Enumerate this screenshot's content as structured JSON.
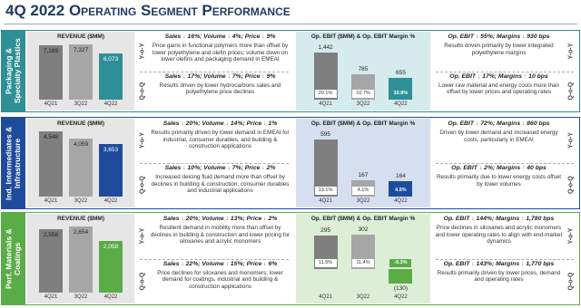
{
  "title": "4Q 2022 Operating Segment Performance",
  "labels": {
    "yoy": "Y-o-Y",
    "qoq": "Q-o-Q"
  },
  "segments": [
    {
      "name": "Packaging & Specialty Plastics",
      "color": "#2e8f96",
      "light": "#d5ebec",
      "chart_data": [
        {
          "type": "bar",
          "title": "REVENUE ($MM)",
          "categories": [
            "4Q21",
            "3Q22",
            "4Q22"
          ],
          "values": [
            7189,
            7327,
            6073
          ],
          "value_labels": [
            "7,189",
            "7,327",
            "6,073"
          ],
          "colors": [
            "#7f7f7f",
            "#a6a6a6",
            "#2e8f96"
          ]
        },
        {
          "type": "bar",
          "title": "Op. EBIT ($MM) & Op. EBIT Margin %",
          "categories": [
            "4Q21",
            "3Q22",
            "4Q22"
          ],
          "values": [
            1442,
            785,
            655
          ],
          "value_labels": [
            "1,442",
            "785",
            "655"
          ],
          "margins": [
            20.1,
            10.7,
            10.8
          ],
          "margin_labels": [
            "20.1%",
            "10.7%",
            "10.8%"
          ],
          "colors": [
            "#7f7f7f",
            "#a6a6a6",
            "#2e8f96"
          ]
        }
      ],
      "revenue_comments": {
        "yoy": {
          "headline": "Sales ↓ 16%; Volume ↓ 4%; Price ↓ 9%",
          "text": "Price gains in functional polymers more than offset by lower polyethylene and olefin prices; volume down on lower olefins and packaging demand in EMEAI"
        },
        "qoq": {
          "headline": "Sales ↓ 17%; Volume ↓ 7%; Price ↓ 9%",
          "text": "Results driven by lower hydrocarbons sales and polyethylene price declines"
        }
      },
      "ebit_comments": {
        "yoy": {
          "headline": "Op. EBIT ↓ 55%; Margins ↓ 930 bps",
          "text": "Results driven primarily by lower integrated polyethylene margins"
        },
        "qoq": {
          "headline": "Op. EBIT ↓ 17%; Margins ↑ 10 bps",
          "text": "Lower raw material and energy costs more than offset by lower prices and operating rates"
        }
      }
    },
    {
      "name": "Ind. Intermediates & Infrastructure",
      "color": "#1f4b9c",
      "light": "#d6dff0",
      "chart_data": [
        {
          "type": "bar",
          "title": "REVENUE ($MM)",
          "categories": [
            "4Q21",
            "3Q22",
            "4Q22"
          ],
          "values": [
            4548,
            4059,
            3653
          ],
          "value_labels": [
            "4,548",
            "4,059",
            "3,653"
          ],
          "colors": [
            "#7f7f7f",
            "#a6a6a6",
            "#1f4b9c"
          ]
        },
        {
          "type": "bar",
          "title": "Op. EBIT ($MM) & Op. EBIT Margin %",
          "categories": [
            "4Q21",
            "3Q22",
            "4Q22"
          ],
          "values": [
            595,
            167,
            164
          ],
          "value_labels": [
            "595",
            "167",
            "164"
          ],
          "margins": [
            13.1,
            4.1,
            4.5
          ],
          "margin_labels": [
            "13.1%",
            "4.1%",
            "4.5%"
          ],
          "colors": [
            "#7f7f7f",
            "#a6a6a6",
            "#1f4b9c"
          ]
        }
      ],
      "revenue_comments": {
        "yoy": {
          "headline": "Sales ↓ 20%; Volume ↓ 14%; Price ↓ 1%",
          "text": "Results primarily driven by lower demand in EMEAI for industrial, consumer durables, and building & construction applications"
        },
        "qoq": {
          "headline": "Sales ↓ 10%; Volume ↓ 7%; Price ↓ 2%",
          "text": "Increased deicing fluid demand more than offset by declines in building & construction, consumer durables and industrial applications"
        }
      },
      "ebit_comments": {
        "yoy": {
          "headline": "Op. EBIT ↓ 72%; Margins ↓ 860 bps",
          "text": "Driven by lower demand and increased energy costs, particularly in EMEAI"
        },
        "qoq": {
          "headline": "Op. EBIT ↓ 2%; Margins ↑ 40 bps",
          "text": "Results primarily due to lower energy costs offset by lower volumes"
        }
      }
    },
    {
      "name": "Perf. Materials & Coatings",
      "color": "#5aac46",
      "light": "#dcefd6",
      "chart_data": [
        {
          "type": "bar",
          "title": "REVENUE ($MM)",
          "categories": [
            "4Q21",
            "3Q22",
            "4Q22"
          ],
          "values": [
            2558,
            2654,
            2058
          ],
          "value_labels": [
            "2,558",
            "2,654",
            "2,058"
          ],
          "colors": [
            "#7f7f7f",
            "#a6a6a6",
            "#5aac46"
          ]
        },
        {
          "type": "bar",
          "title": "Op. EBIT ($MM) & Op. EBIT Margin %",
          "categories": [
            "4Q21",
            "3Q22",
            "4Q22"
          ],
          "values": [
            295,
            302,
            -130
          ],
          "value_labels": [
            "295",
            "302",
            "(130)"
          ],
          "margins": [
            11.5,
            11.4,
            -6.3
          ],
          "margin_labels": [
            "11.5%",
            "11.4%",
            "-6.3%"
          ],
          "colors": [
            "#7f7f7f",
            "#a6a6a6",
            "#5aac46"
          ]
        }
      ],
      "revenue_comments": {
        "yoy": {
          "headline": "Sales ↓ 20%; Volume ↓ 13%; Price ↓ 2%",
          "text": "Resilient demand in mobility more than offset by declines in building & construction and lower pricing for siloxanes and acrylic monomers"
        },
        "qoq": {
          "headline": "Sales ↓ 22%; Volume ↓ 15%; Price ↓ 6%",
          "text": "Price declines for siloxanes and monomers; lower demand for coatings, industrial and building & construction applications"
        }
      },
      "ebit_comments": {
        "yoy": {
          "headline": "Op. EBIT ↓ 144%; Margins ↓ 1,780 bps",
          "text": "Price declines in siloxanes and acrylic monomers and lower operating rates to align with end-market dynamics"
        },
        "qoq": {
          "headline": "Op. EBIT ↓ 143%; Margins ↓ 1,770 bps",
          "text": "Results primarily driven by lower prices, demand and operating rates"
        }
      }
    }
  ]
}
